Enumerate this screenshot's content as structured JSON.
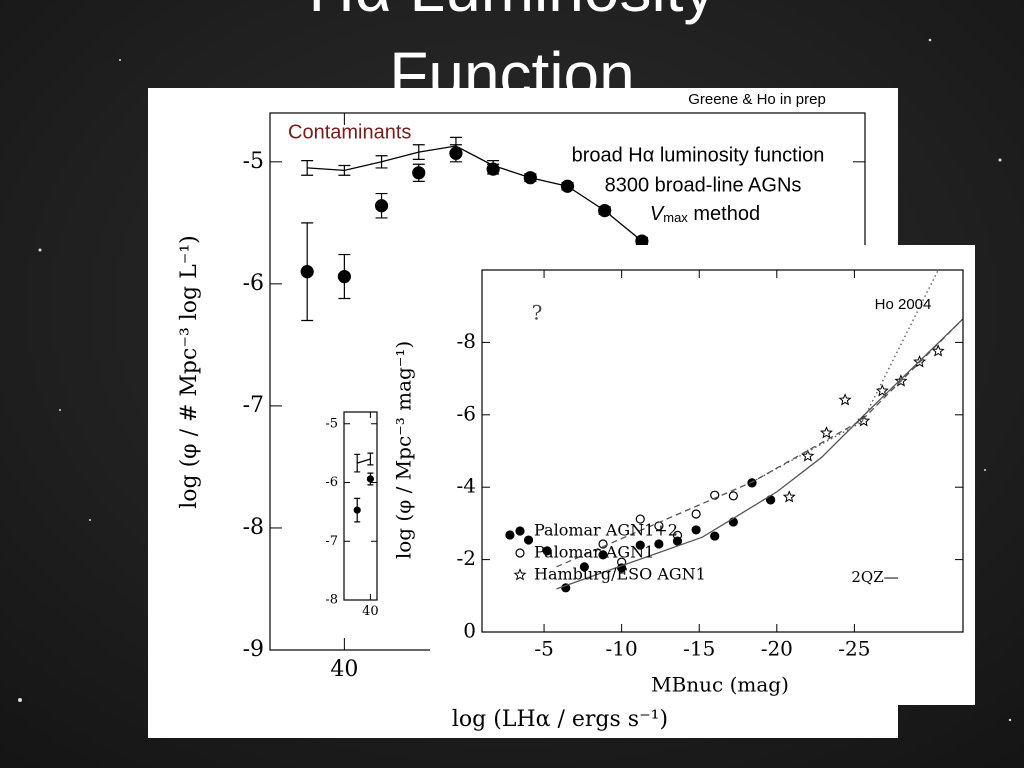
{
  "slide": {
    "title_lines": [
      "Hα Luminosity",
      "Function"
    ]
  },
  "chart_data": [
    {
      "type": "scatter",
      "annotations": [
        "Greene & Ho in prep",
        "Contaminants",
        "broad Hα luminosity function",
        "8300 broad-line AGNs",
        [
          "V",
          "max",
          " method"
        ]
      ],
      "xlabel": "log (LHα / ergs s⁻¹)",
      "ylabel": "log (φ / # Mpc⁻³ log L⁻¹)",
      "xlim": [
        39.6,
        42.8
      ],
      "xticks": [
        40
      ],
      "ylim": [
        -4.6,
        -9.0
      ],
      "yticks": [
        -5,
        -6,
        -7,
        -8,
        -9
      ],
      "series": [
        {
          "marker": "circle-filled",
          "color": "#000000",
          "x": [
            39.8,
            40.0,
            40.2,
            40.4,
            40.6,
            40.8,
            41.0,
            41.2,
            41.4,
            41.6
          ],
          "values": [
            -5.9,
            -5.94,
            -5.36,
            -5.09,
            -4.93,
            -5.06,
            -5.13,
            -5.2,
            -5.4,
            -5.65
          ],
          "errors": [
            0.4,
            0.18,
            0.1,
            0.07,
            0.07,
            0.04,
            0.03,
            0.03,
            0.03,
            0.03
          ]
        },
        {
          "line": "solid",
          "color": "#000000",
          "x": [
            39.8,
            40.0,
            40.2,
            40.4,
            40.6,
            40.8,
            41.0,
            41.2,
            41.4,
            41.6
          ],
          "values": [
            -5.05,
            -5.07,
            -5.0,
            -4.92,
            -4.87,
            -5.03,
            -5.13,
            -5.2,
            -5.4,
            -5.65
          ],
          "errors": [
            0.06,
            0.04,
            0.05,
            0.06,
            0.07,
            0.04,
            0.03,
            0.03,
            0.03,
            0.03
          ]
        }
      ]
    },
    {
      "type": "scatter",
      "xlim": [
        39.6,
        40.1
      ],
      "xticks": [
        40
      ],
      "ylim": [
        -4.8,
        -8.0
      ],
      "yticks": [
        -5,
        -6,
        -7,
        -8
      ],
      "series": [
        {
          "marker": "circle-filled",
          "color": "#000000",
          "x": [
            39.8,
            40.0
          ],
          "values": [
            -6.47,
            -5.94
          ],
          "errors": [
            0.2,
            0.1
          ]
        },
        {
          "line": "solid",
          "color": "#000000",
          "x": [
            39.8,
            40.0
          ],
          "values": [
            -5.67,
            -5.6
          ],
          "errors": [
            0.15,
            0.1
          ]
        }
      ]
    },
    {
      "type": "scatter",
      "annotations": [
        "Ho 2004",
        "?",
        "2QZ—"
      ],
      "xlabel": "MBnuc (mag)",
      "ylabel": "log (φ / Mpc⁻³ mag⁻¹)",
      "xlim": [
        -1,
        -32
      ],
      "xticks": [
        -5,
        -10,
        -15,
        -20,
        -25
      ],
      "ylim": [
        -10,
        0
      ],
      "yticks": [
        0,
        -2,
        -4,
        -6,
        -8
      ],
      "legend": "lower left",
      "series": [
        {
          "name": "Palomar AGN1+2",
          "marker": "circle-filled",
          "color": "#000000",
          "x": [
            -2.8,
            -4.0,
            -5.2,
            -6.4,
            -7.6,
            -8.8,
            -10.0,
            -11.2,
            -12.4,
            -13.6,
            -14.8,
            -16.0,
            -17.2,
            -18.4,
            -19.6
          ],
          "values": [
            -2.68,
            -2.54,
            -2.24,
            -1.22,
            -1.8,
            -2.13,
            -1.77,
            -2.4,
            -2.43,
            -2.51,
            -2.82,
            -2.65,
            -3.04,
            -4.12,
            -3.65
          ]
        },
        {
          "name": "Palomar AGN1",
          "marker": "circle-open",
          "color": "#000000",
          "x": [
            -8.8,
            -10.0,
            -11.2,
            -12.4,
            -13.6,
            -14.8,
            -16.0,
            -17.2,
            -18.4,
            -19.6
          ],
          "values": [
            -2.43,
            -1.93,
            -3.12,
            -2.93,
            -2.67,
            -3.26,
            -3.78,
            -3.76,
            -4.12,
            -3.65
          ]
        },
        {
          "name": "Hamburg/ESO AGN1",
          "marker": "star",
          "color": "#000000",
          "x": [
            -20.8,
            -22.0,
            -23.2,
            -24.4,
            -25.6,
            -26.8,
            -28.0,
            -29.2,
            -30.4
          ],
          "values": [
            -3.73,
            -4.86,
            -5.5,
            -6.41,
            -5.83,
            -6.66,
            -6.93,
            -7.46,
            -7.76
          ]
        },
        {
          "line": "solid",
          "color": "#555555",
          "x": [
            -5.8,
            -15.2,
            -20.0,
            -22.9,
            -25.5,
            -32.0
          ],
          "values": [
            -1.19,
            -2.62,
            -3.87,
            -4.83,
            -5.94,
            -8.65
          ]
        },
        {
          "line": "dashed",
          "color": "#555555",
          "x": [
            -5.8,
            -18.4,
            -25.5,
            -32.0
          ],
          "values": [
            -1.8,
            -4.14,
            -5.86,
            -8.65
          ]
        },
        {
          "line": "dotted",
          "color": "#555555",
          "x": [
            -18.4,
            -25.5,
            -30.4
          ],
          "values": [
            -4.14,
            -5.8,
            -10.0
          ]
        }
      ]
    }
  ]
}
